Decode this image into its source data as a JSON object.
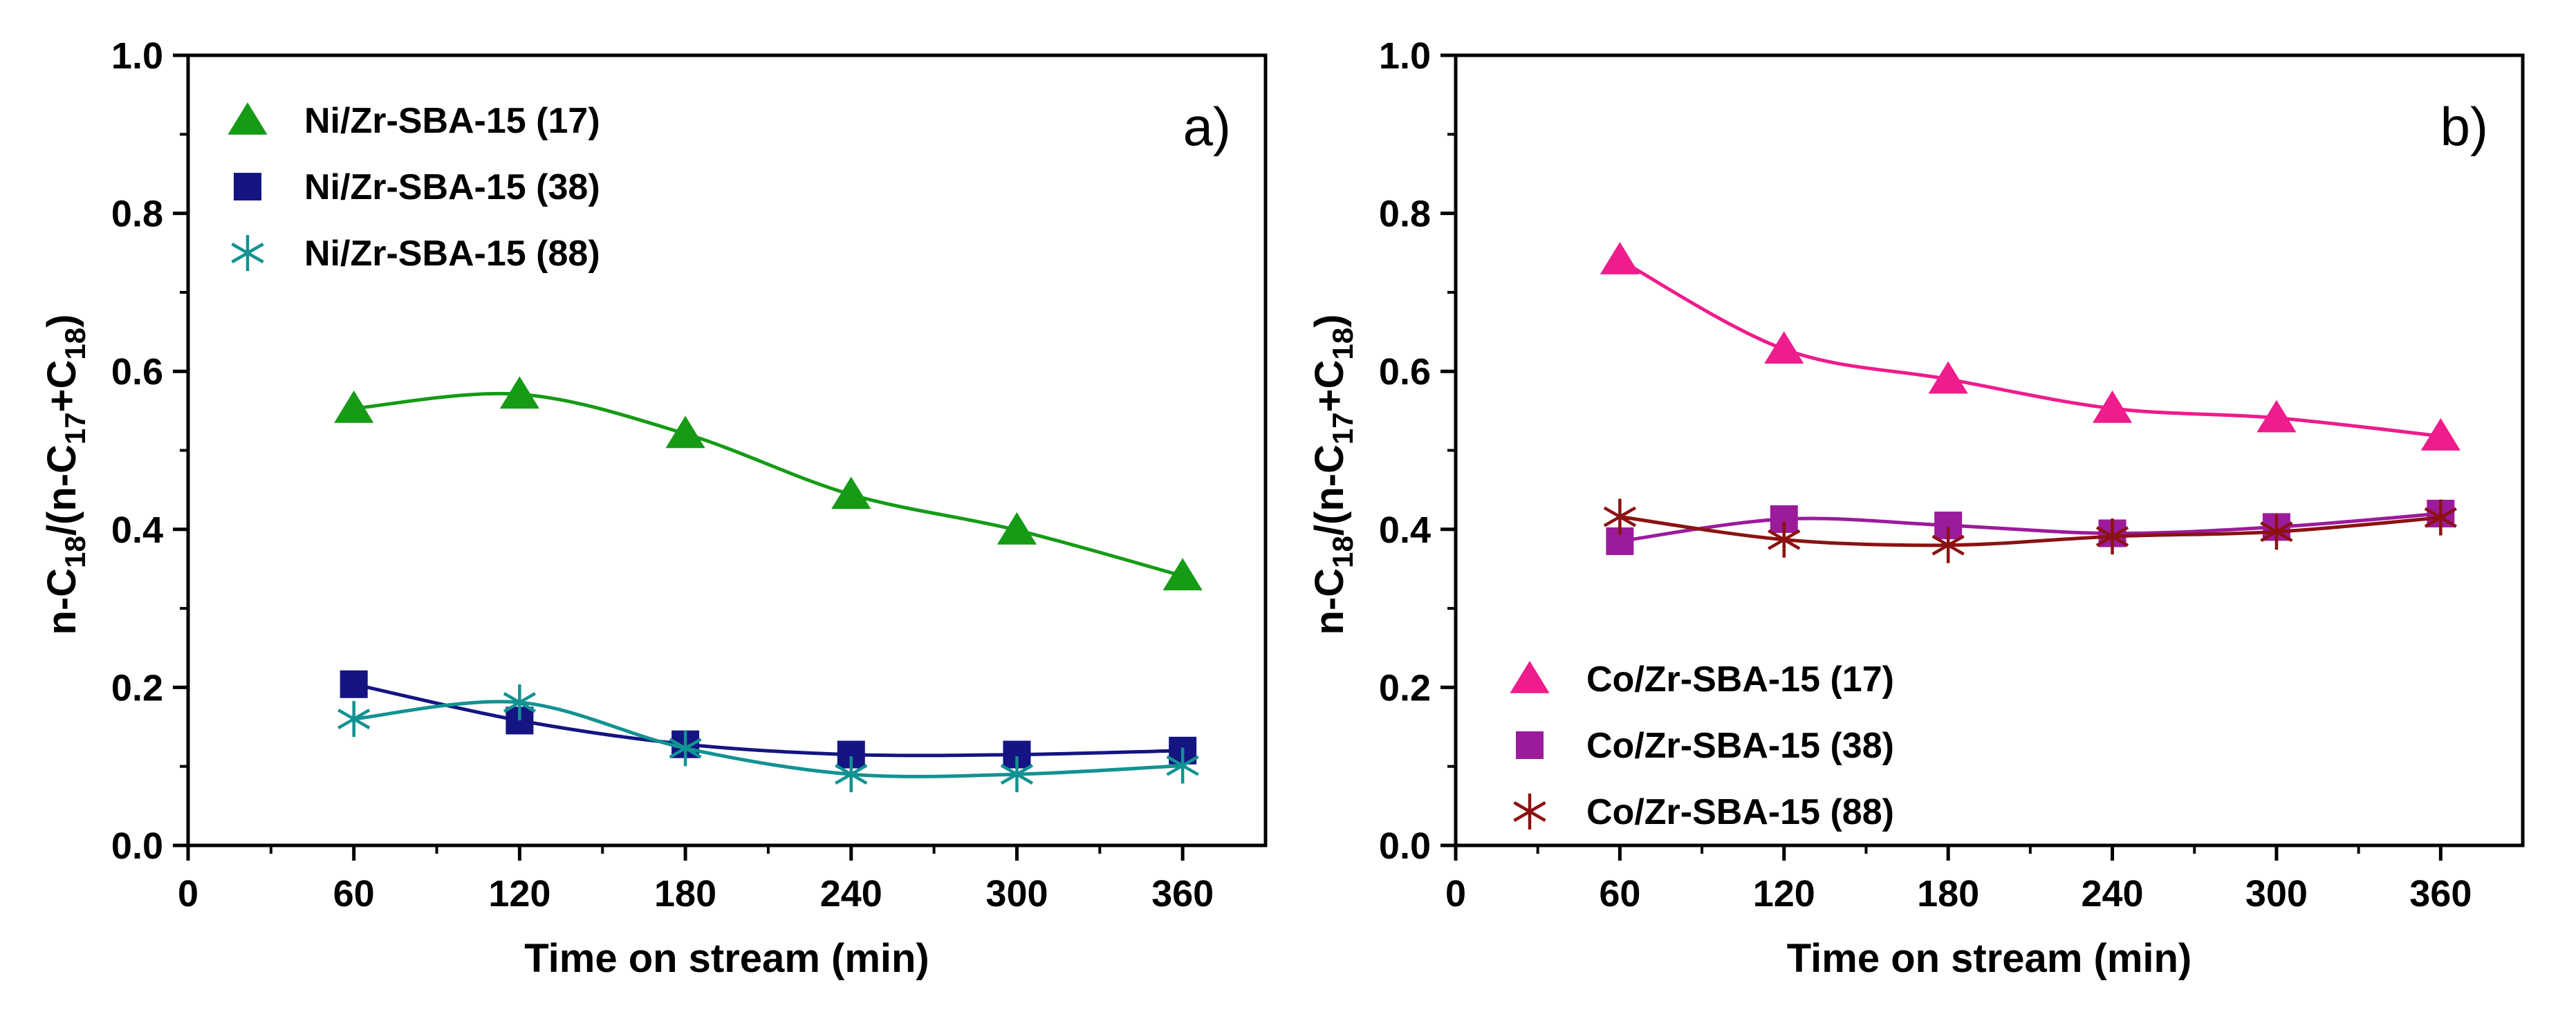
{
  "chart_data": [
    {
      "type": "scatter",
      "panel_label": "a)",
      "xlabel": "Time on stream (min)",
      "ylabel": {
        "base": "n-C",
        "sub1": "18",
        "mid": "/(n-C",
        "sub2": "17",
        "plus": "+C",
        "sub3": "18",
        "end": ")"
      },
      "xlim": [
        0,
        390
      ],
      "ylim": [
        0,
        1.0
      ],
      "xticks": [
        0,
        60,
        120,
        180,
        240,
        300,
        360
      ],
      "yticks": [
        "0.0",
        "0.2",
        "0.4",
        "0.6",
        "0.8",
        "1.0"
      ],
      "x": [
        60,
        120,
        180,
        240,
        300,
        360
      ],
      "legend_position": "top-left",
      "series": [
        {
          "name": "Ni/Zr-SBA-15 (17)",
          "marker": "triangle",
          "color": "#159b15",
          "values": [
            0.553,
            0.571,
            0.521,
            0.444,
            0.399,
            0.341
          ]
        },
        {
          "name": "Ni/Zr-SBA-15 (38)",
          "marker": "square",
          "color": "#141483",
          "values": [
            0.204,
            0.158,
            0.128,
            0.115,
            0.115,
            0.12
          ]
        },
        {
          "name": "Ni/Zr-SBA-15 (88)",
          "marker": "asterisk",
          "color": "#129292",
          "values": [
            0.16,
            0.181,
            0.123,
            0.09,
            0.09,
            0.101
          ]
        }
      ]
    },
    {
      "type": "scatter",
      "panel_label": "b)",
      "xlabel": "Time on stream (min)",
      "ylabel": {
        "base": "n-C",
        "sub1": "18",
        "mid": "/(n-C",
        "sub2": "17",
        "plus": "+C",
        "sub3": "18",
        "end": ")"
      },
      "xlim": [
        0,
        390
      ],
      "ylim": [
        0,
        1.0
      ],
      "xticks": [
        0,
        60,
        120,
        180,
        240,
        300,
        360
      ],
      "yticks": [
        "0.0",
        "0.2",
        "0.4",
        "0.6",
        "0.8",
        "1.0"
      ],
      "x": [
        60,
        120,
        180,
        240,
        300,
        360
      ],
      "legend_position": "bottom-left",
      "series": [
        {
          "name": "Co/Zr-SBA-15 (17)",
          "marker": "triangle",
          "color": "#ee1c8c",
          "values": [
            0.741,
            0.628,
            0.59,
            0.553,
            0.541,
            0.518
          ]
        },
        {
          "name": "Co/Zr-SBA-15 (38)",
          "marker": "square",
          "color": "#9b1b9b",
          "values": [
            0.385,
            0.413,
            0.405,
            0.395,
            0.403,
            0.42
          ]
        },
        {
          "name": "Co/Zr-SBA-15 (88)",
          "marker": "asterisk",
          "color": "#8b1212",
          "values": [
            0.416,
            0.387,
            0.38,
            0.391,
            0.397,
            0.415
          ]
        }
      ]
    }
  ]
}
